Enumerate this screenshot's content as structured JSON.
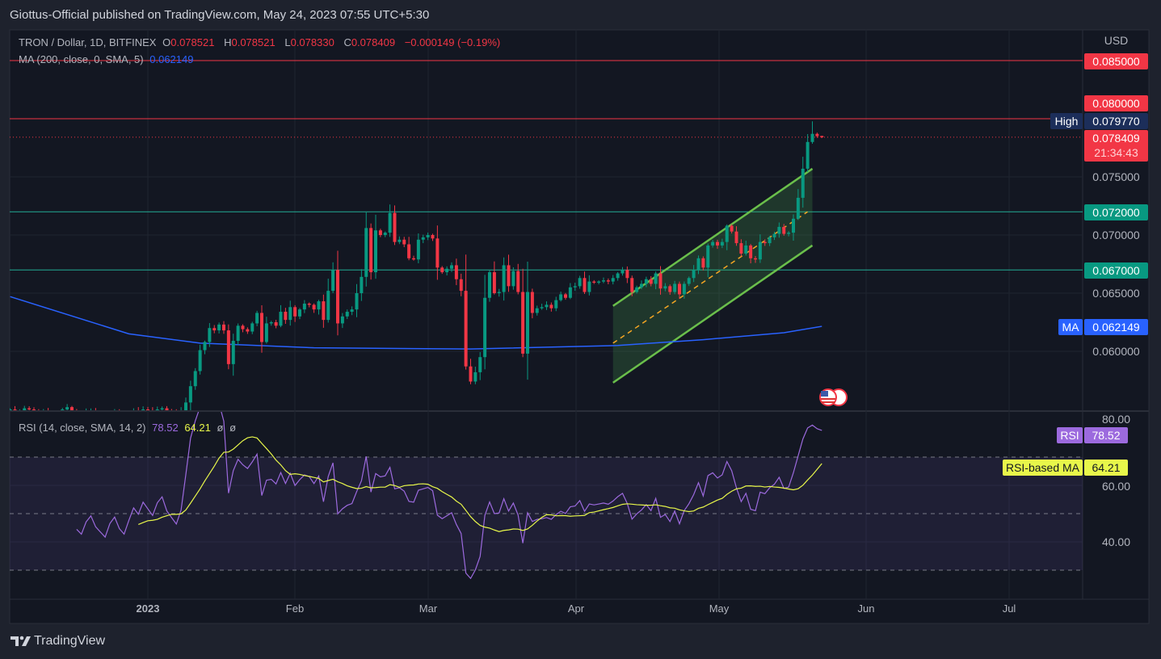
{
  "header": {
    "published": "Giottus-Official published on TradingView.com, May 24, 2023 07:55 UTC+5:30"
  },
  "legend": {
    "symbol": "TRON / Dollar, 1D, BITFINEX",
    "o_label": "O",
    "o": "0.078521",
    "h_label": "H",
    "h": "0.078521",
    "l_label": "L",
    "l": "0.078330",
    "c_label": "C",
    "c": "0.078409",
    "change": "−0.000149 (−0.19%)",
    "ma_label": "MA (200, close, 0, SMA, 5)",
    "ma_value": "0.062149",
    "rsi_label": "RSI (14, close, SMA, 14, 2)",
    "rsi_value": "78.52",
    "rsi_ma_value": "64.21",
    "na1": "ø",
    "na2": "ø"
  },
  "price_axis": {
    "currency": "USD",
    "ticks": [
      "0.075000",
      "0.070000",
      "0.065000",
      "0.060000"
    ],
    "tags": {
      "line_085": "0.085000",
      "line_080": "0.080000",
      "high_label": "High",
      "high_value": "0.079770",
      "last_price": "0.078409",
      "countdown": "21:34:43",
      "line_072": "0.072000",
      "line_067": "0.067000",
      "ma_label": "MA",
      "ma_value": "0.062149"
    }
  },
  "rsi_axis": {
    "ticks": [
      "80.00",
      "60.00",
      "40.00"
    ],
    "rsi_tag_label": "RSI",
    "rsi_tag_value": "78.52",
    "ma_tag_label": "RSI-based MA",
    "ma_tag_value": "64.21"
  },
  "time_axis": {
    "labels": [
      "2023",
      "Feb",
      "Mar",
      "Apr",
      "May",
      "Jun",
      "Jul"
    ]
  },
  "footer": {
    "brand": "TradingView"
  },
  "colors": {
    "up": "#089981",
    "down": "#f23645",
    "ma": "#2962ff",
    "rsi": "#9c6ade",
    "rsi_ma": "#e8f74a",
    "channel": "#6abf4b",
    "channel_mid": "#f5a623",
    "bg": "#131722"
  },
  "chart_data": {
    "type": "candlestick",
    "symbol": "TRON / Dollar",
    "interval": "1D",
    "price_range": [
      0.0545,
      0.087
    ],
    "closes": [
      {
        "month": "2022-12",
        "start_day": 3,
        "close": [
          0.055,
          0.0548,
          0.0549,
          0.0551,
          0.055,
          0.0548,
          0.0547,
          0.0549,
          0.0546,
          0.0545,
          0.0548,
          0.055,
          0.0552,
          0.0549,
          0.0547,
          0.0546,
          0.0548,
          0.0549,
          0.0547,
          0.0546,
          0.0545,
          0.0547,
          0.0548,
          0.0546,
          0.0545,
          0.0547,
          0.0549,
          0.0548,
          0.055
        ]
      },
      {
        "month": "2023-01",
        "start_day": 1,
        "close": [
          0.0549,
          0.0548,
          0.055,
          0.0551,
          0.0549,
          0.0548,
          0.0547,
          0.0549,
          0.0556,
          0.057,
          0.0583,
          0.0601,
          0.0608,
          0.062,
          0.0618,
          0.0623,
          0.0618,
          0.0589,
          0.0609,
          0.0622,
          0.0619,
          0.0617,
          0.0624,
          0.0633,
          0.0608,
          0.0624,
          0.0625,
          0.0622,
          0.0634,
          0.0627,
          0.0638
        ]
      },
      {
        "month": "2023-02",
        "start_day": 1,
        "close": [
          0.063,
          0.0636,
          0.0641,
          0.064,
          0.0636,
          0.0643,
          0.0627,
          0.0652,
          0.067,
          0.0624,
          0.063,
          0.0634,
          0.0636,
          0.065,
          0.0664,
          0.0706,
          0.0668,
          0.0704,
          0.07,
          0.0702,
          0.0719,
          0.0694,
          0.0696,
          0.0692,
          0.068,
          0.0679,
          0.0696,
          0.0698
        ]
      },
      {
        "month": "2023-03",
        "start_day": 1,
        "close": [
          0.07,
          0.0697,
          0.0672,
          0.0668,
          0.0671,
          0.0674,
          0.0662,
          0.0652,
          0.0587,
          0.0574,
          0.0582,
          0.0595,
          0.0646,
          0.0668,
          0.065,
          0.0651,
          0.0674,
          0.0656,
          0.0669,
          0.0651,
          0.0598,
          0.0651,
          0.0633,
          0.0637,
          0.0638,
          0.064,
          0.0637,
          0.0644,
          0.0649,
          0.0646,
          0.0655
        ]
      },
      {
        "month": "2023-04",
        "start_day": 1,
        "close": [
          0.0656,
          0.0663,
          0.0651,
          0.066,
          0.0659,
          0.066,
          0.0661,
          0.066,
          0.0663,
          0.0667,
          0.067,
          0.0663,
          0.0651,
          0.0655,
          0.0658,
          0.0662,
          0.0658,
          0.0667,
          0.0654,
          0.0656,
          0.0651,
          0.0658,
          0.0649,
          0.0658,
          0.0663,
          0.067,
          0.068,
          0.0672,
          0.0691,
          0.0694
        ]
      },
      {
        "month": "2023-05",
        "start_day": 1,
        "close": [
          0.0691,
          0.0694,
          0.0708,
          0.0703,
          0.0693,
          0.0684,
          0.0691,
          0.068,
          0.0679,
          0.0694,
          0.0693,
          0.0698,
          0.0701,
          0.0707,
          0.0701,
          0.0702,
          0.0714,
          0.0732,
          0.0757,
          0.078,
          0.0787,
          0.0785,
          0.078409
        ]
      }
    ],
    "ma200": [
      [
        "2022-12-03",
        0.0647
      ],
      [
        "2022-12-28",
        0.0615
      ],
      [
        "2023-01-12",
        0.0607
      ],
      [
        "2023-02-05",
        0.0603
      ],
      [
        "2023-03-10",
        0.0602
      ],
      [
        "2023-04-10",
        0.0605
      ],
      [
        "2023-04-28",
        0.061
      ],
      [
        "2023-05-15",
        0.0616
      ],
      [
        "2023-05-23",
        0.062149
      ]
    ],
    "horizontal_lines": [
      {
        "price": 0.085,
        "color": "#f23645"
      },
      {
        "price": 0.08,
        "color": "#f23645"
      },
      {
        "price": 0.072,
        "color": "#22ab94"
      },
      {
        "price": 0.067,
        "color": "#22ab94"
      }
    ],
    "last_price": 0.078409,
    "channel": {
      "start": "2023-04-09",
      "end": "2023-05-21",
      "upper": [
        0.0639,
        0.0757
      ],
      "lower": [
        0.0573,
        0.0691
      ],
      "middle": [
        0.0607,
        0.072
      ]
    },
    "rsi": {
      "length": 14,
      "ma_length": 14,
      "bands": [
        70,
        50,
        30
      ],
      "range": [
        22,
        88
      ],
      "last": 78.52,
      "ma_last": 64.21
    }
  }
}
